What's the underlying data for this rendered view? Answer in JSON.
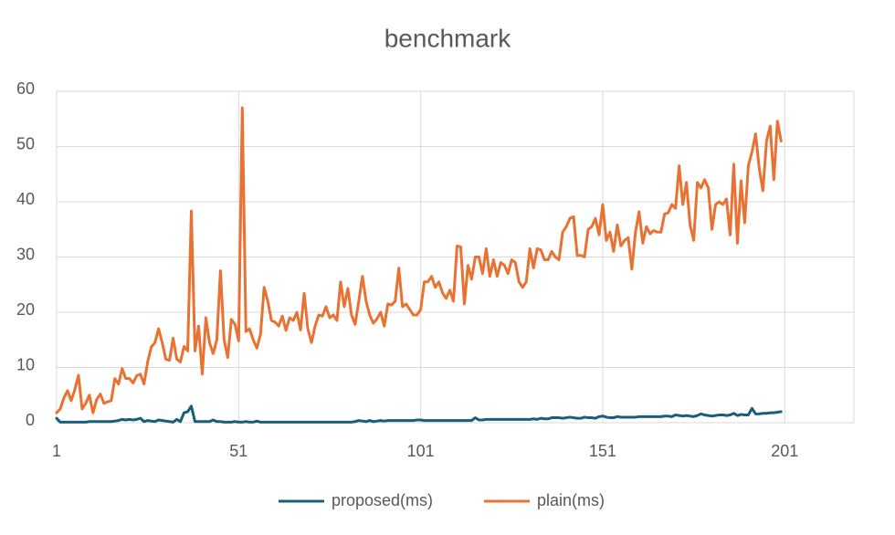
{
  "chart_data": {
    "type": "line",
    "title": "benchmark",
    "x": [
      1,
      2,
      3,
      4,
      5,
      6,
      7,
      8,
      9,
      10,
      11,
      12,
      13,
      14,
      15,
      16,
      17,
      18,
      19,
      20,
      21,
      22,
      23,
      24,
      25,
      26,
      27,
      28,
      29,
      30,
      31,
      32,
      33,
      34,
      35,
      36,
      37,
      38,
      39,
      40,
      41,
      42,
      43,
      44,
      45,
      46,
      47,
      48,
      49,
      50,
      51,
      52,
      53,
      54,
      55,
      56,
      57,
      58,
      59,
      60,
      61,
      62,
      63,
      64,
      65,
      66,
      67,
      68,
      69,
      70,
      71,
      72,
      73,
      74,
      75,
      76,
      77,
      78,
      79,
      80,
      81,
      82,
      83,
      84,
      85,
      86,
      87,
      88,
      89,
      90,
      91,
      92,
      93,
      94,
      95,
      96,
      97,
      98,
      99,
      100,
      101,
      102,
      103,
      104,
      105,
      106,
      107,
      108,
      109,
      110,
      111,
      112,
      113,
      114,
      115,
      116,
      117,
      118,
      119,
      120,
      121,
      122,
      123,
      124,
      125,
      126,
      127,
      128,
      129,
      130,
      131,
      132,
      133,
      134,
      135,
      136,
      137,
      138,
      139,
      140,
      141,
      142,
      143,
      144,
      145,
      146,
      147,
      148,
      149,
      150,
      151,
      152,
      153,
      154,
      155,
      156,
      157,
      158,
      159,
      160,
      161,
      162,
      163,
      164,
      165,
      166,
      167,
      168,
      169,
      170,
      171,
      172,
      173,
      174,
      175,
      176,
      177,
      178,
      179,
      180,
      181,
      182,
      183,
      184,
      185,
      186,
      187,
      188,
      189,
      190,
      191,
      192,
      193,
      194,
      195,
      196,
      197,
      198,
      199,
      200
    ],
    "series": [
      {
        "name": "proposed(ms)",
        "color": "#1b5e78",
        "values": [
          0.8,
          0.1,
          0.1,
          0.1,
          0.1,
          0.1,
          0.1,
          0.1,
          0.1,
          0.2,
          0.2,
          0.2,
          0.2,
          0.2,
          0.2,
          0.2,
          0.3,
          0.4,
          0.6,
          0.5,
          0.6,
          0.5,
          0.6,
          0.8,
          0.2,
          0.4,
          0.3,
          0.2,
          0.5,
          0.4,
          0.3,
          0.2,
          0.1,
          0.6,
          0.2,
          1.8,
          2,
          3,
          0.2,
          0.2,
          0.2,
          0.2,
          0.2,
          0.5,
          0.2,
          0.2,
          0.1,
          0.1,
          0.1,
          0.2,
          0.1,
          0.1,
          0.2,
          0.1,
          0.1,
          0.3,
          0.1,
          0.1,
          0.1,
          0.1,
          0.1,
          0.1,
          0.1,
          0.1,
          0.1,
          0.1,
          0.1,
          0.1,
          0.1,
          0.1,
          0.1,
          0.1,
          0.1,
          0.1,
          0.1,
          0.1,
          0.1,
          0.1,
          0.1,
          0.1,
          0.1,
          0.1,
          0.2,
          0.4,
          0.3,
          0.2,
          0.4,
          0.2,
          0.3,
          0.4,
          0.3,
          0.4,
          0.4,
          0.4,
          0.4,
          0.4,
          0.4,
          0.4,
          0.4,
          0.5,
          0.5,
          0.4,
          0.4,
          0.4,
          0.4,
          0.4,
          0.4,
          0.4,
          0.4,
          0.4,
          0.4,
          0.4,
          0.4,
          0.4,
          0.4,
          0.9,
          0.5,
          0.5,
          0.6,
          0.6,
          0.6,
          0.6,
          0.6,
          0.6,
          0.6,
          0.6,
          0.6,
          0.6,
          0.6,
          0.6,
          0.6,
          0.7,
          0.6,
          0.8,
          0.7,
          0.7,
          0.9,
          0.9,
          0.9,
          0.8,
          0.9,
          1,
          0.9,
          0.8,
          0.8,
          1,
          0.9,
          0.9,
          0.8,
          1.1,
          1.2,
          1,
          0.9,
          0.9,
          1.1,
          1,
          1,
          1,
          1,
          1,
          1.1,
          1.1,
          1.1,
          1.1,
          1.1,
          1.1,
          1.1,
          1.2,
          1.2,
          1.1,
          1.4,
          1.3,
          1.2,
          1.3,
          1.2,
          1.1,
          1.3,
          1.6,
          1.4,
          1.3,
          1.2,
          1.3,
          1.4,
          1.4,
          1.3,
          1.4,
          1.7,
          1.3,
          1.5,
          1.4,
          1.4,
          2.6,
          1.6,
          1.6,
          1.7,
          1.7,
          1.8,
          1.8,
          1.9,
          2
        ]
      },
      {
        "name": "plain(ms)",
        "color": "#e97132",
        "values": [
          1.8,
          2.5,
          4.5,
          5.8,
          4,
          6,
          8.6,
          2.5,
          3.5,
          5,
          1.8,
          4.2,
          5.2,
          3.5,
          3.8,
          4,
          8,
          7,
          9.8,
          8,
          8,
          7.2,
          8.5,
          8.8,
          7,
          11,
          13.7,
          14.5,
          17,
          14.5,
          11.5,
          11.3,
          15.3,
          11.5,
          11,
          13.8,
          13,
          38.3,
          13,
          17.5,
          8.8,
          19,
          14.5,
          12.5,
          15,
          27.5,
          15,
          11.8,
          18.7,
          17.8,
          14.8,
          57,
          16.5,
          17,
          15,
          13.5,
          16,
          24.5,
          22,
          18.5,
          18.2,
          17.5,
          19.3,
          16.7,
          19,
          18.5,
          20,
          16.8,
          23.4,
          17,
          14.5,
          17.5,
          19.5,
          19.3,
          21,
          19,
          19.5,
          18.5,
          25.5,
          21,
          24.3,
          19.5,
          17.8,
          22,
          26.5,
          22,
          19.5,
          18,
          18.8,
          20,
          17.5,
          21.5,
          21.3,
          22,
          28,
          21,
          21.5,
          20.5,
          19.5,
          19.5,
          20.5,
          25.5,
          25.5,
          26.5,
          24.5,
          25.5,
          23.5,
          22.5,
          24,
          22,
          32,
          31.8,
          21.5,
          28.5,
          26,
          30,
          30,
          27,
          31.5,
          26.5,
          29.5,
          26.5,
          29,
          28.5,
          27,
          29.5,
          29,
          25.5,
          24.5,
          25.5,
          31.5,
          28,
          31.5,
          31.3,
          29.5,
          29.5,
          31,
          30,
          29.5,
          34.5,
          35.5,
          37,
          37.3,
          30.3,
          30.3,
          30,
          35,
          35.5,
          37,
          34,
          39.5,
          33,
          34.5,
          31,
          35.8,
          32,
          33,
          33.5,
          27.8,
          34.5,
          38.2,
          32.5,
          35.5,
          34.2,
          34.8,
          34.5,
          34.5,
          37.8,
          38,
          39.5,
          38.8,
          46.5,
          39.5,
          43.5,
          35.8,
          33,
          43.5,
          42.5,
          44,
          42.5,
          35,
          39.5,
          40,
          39.5,
          40.5,
          34,
          46.8,
          32.5,
          43.8,
          36.2,
          46.5,
          49,
          52.3,
          46,
          42,
          51,
          53.7,
          44,
          54.6,
          51
        ]
      }
    ],
    "xlim": [
      1,
      220
    ],
    "xticks": [
      1,
      51,
      101,
      151,
      201
    ],
    "ylim": [
      0,
      60
    ],
    "yticks": [
      0,
      10,
      20,
      30,
      40,
      50,
      60
    ],
    "grid": true,
    "legend": "bottom"
  }
}
